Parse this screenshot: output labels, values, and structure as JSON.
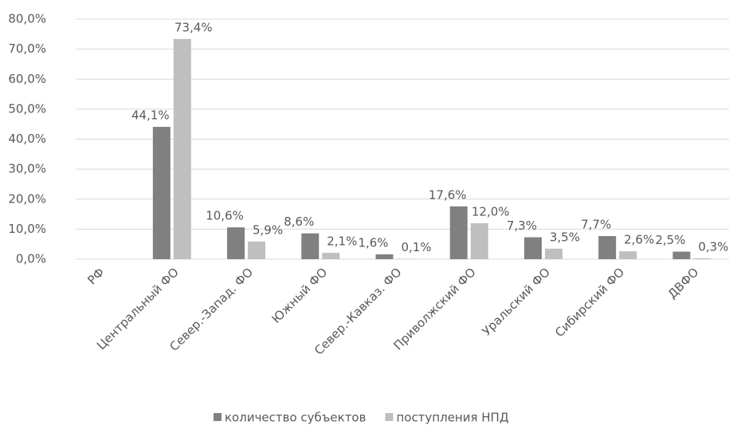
{
  "chart_data": {
    "type": "bar",
    "categories": [
      "РФ",
      "Центральный ФО",
      "Север.-Запад. ФО",
      "Южный ФО",
      "Север.-Кавказ. ФО",
      "Приволжский ФО",
      "Уральский ФО",
      "Сибирский ФО",
      "ДВФО"
    ],
    "series": [
      {
        "name": "количество субъектов",
        "color": "#808080",
        "values": [
          null,
          44.1,
          10.6,
          8.6,
          1.6,
          17.6,
          7.3,
          7.7,
          2.5
        ],
        "value_labels": [
          null,
          "44,1%",
          "10,6%",
          "8,6%",
          "1,6%",
          "17,6%",
          "7,3%",
          "7,7%",
          "2,5%"
        ]
      },
      {
        "name": "поступления НПД",
        "color": "#bfbfbf",
        "values": [
          null,
          73.4,
          5.9,
          2.1,
          0.1,
          12.0,
          3.5,
          2.6,
          0.3
        ],
        "value_labels": [
          null,
          "73,4%",
          "5,9%",
          "2,1%",
          "0,1%",
          "12,0%",
          "3,5%",
          "2,6%",
          "0,3%"
        ]
      }
    ],
    "ylim": [
      0,
      80
    ],
    "yticks": [
      {
        "value": 0,
        "label": "0,0%"
      },
      {
        "value": 10,
        "label": "10,0%"
      },
      {
        "value": 20,
        "label": "20,0%"
      },
      {
        "value": 30,
        "label": "30,0%"
      },
      {
        "value": 40,
        "label": "40,0%"
      },
      {
        "value": 50,
        "label": "50,0%"
      },
      {
        "value": 60,
        "label": "60,0%"
      },
      {
        "value": 70,
        "label": "70,0%"
      },
      {
        "value": 80,
        "label": "80,0%"
      }
    ],
    "grid": true,
    "legend": "bottom"
  }
}
